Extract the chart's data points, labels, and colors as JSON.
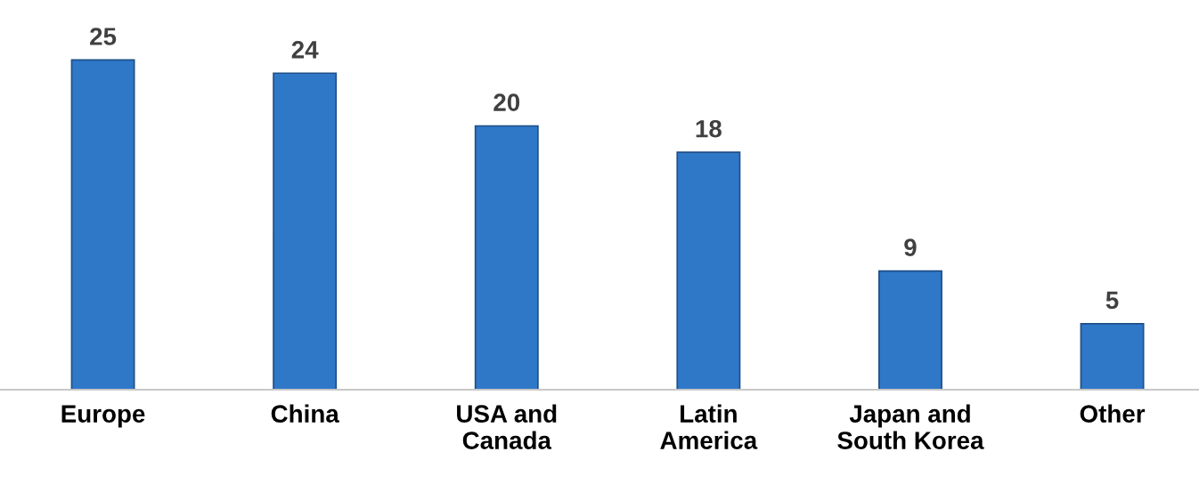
{
  "chart_data": {
    "type": "bar",
    "categories": [
      "Europe",
      "China",
      "USA and\nCanada",
      "Latin\nAmerica",
      "Japan and\nSouth Korea",
      "Other"
    ],
    "values": [
      25,
      24,
      20,
      18,
      9,
      5
    ],
    "color": "#2f78c8",
    "data_labels": true,
    "grid": false,
    "legend": false
  }
}
